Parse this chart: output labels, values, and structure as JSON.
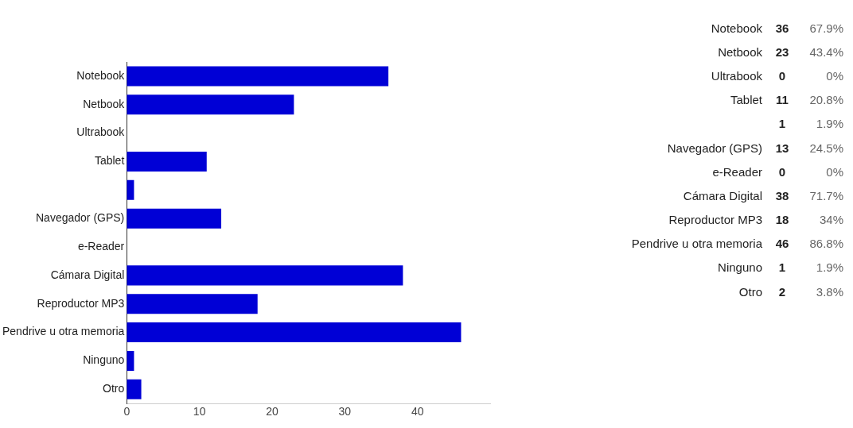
{
  "chart_data": [
    {
      "type": "bar",
      "orientation": "horizontal",
      "categories": [
        "Notebook",
        "Netbook",
        "Ultrabook",
        "Tablet",
        null,
        "Navegador (GPS)",
        "e-Reader",
        "Cámara Digital",
        "Reproductor MP3",
        "Pendrive u otra memoria",
        "Ninguno",
        "Otro"
      ],
      "values": [
        36,
        23,
        0,
        11,
        1,
        13,
        0,
        38,
        18,
        46,
        1,
        2
      ],
      "color": "#0000d6",
      "xlim": [
        0,
        50
      ],
      "xticks": [
        0,
        10,
        20,
        30,
        40
      ],
      "grid": false,
      "legend": false
    },
    {
      "type": "other",
      "categories": [
        "Notebook",
        "Netbook",
        "Ultrabook",
        "Tablet",
        null,
        "Navegador (GPS)",
        "e-Reader",
        "Cámara Digital",
        "Reproductor MP3",
        "Pendrive u otra memoria",
        "Ninguno",
        "Otro"
      ],
      "data_labels": true,
      "values": [
        36,
        23,
        0,
        11,
        1,
        13,
        0,
        38,
        18,
        46,
        1,
        2
      ],
      "annotations": [
        "67.9%",
        "43.4%",
        "0%",
        "20.8%",
        "1.9%",
        "24.5%",
        "0%",
        "71.7%",
        "34%",
        "86.8%",
        "1.9%",
        "3.8%"
      ]
    }
  ]
}
